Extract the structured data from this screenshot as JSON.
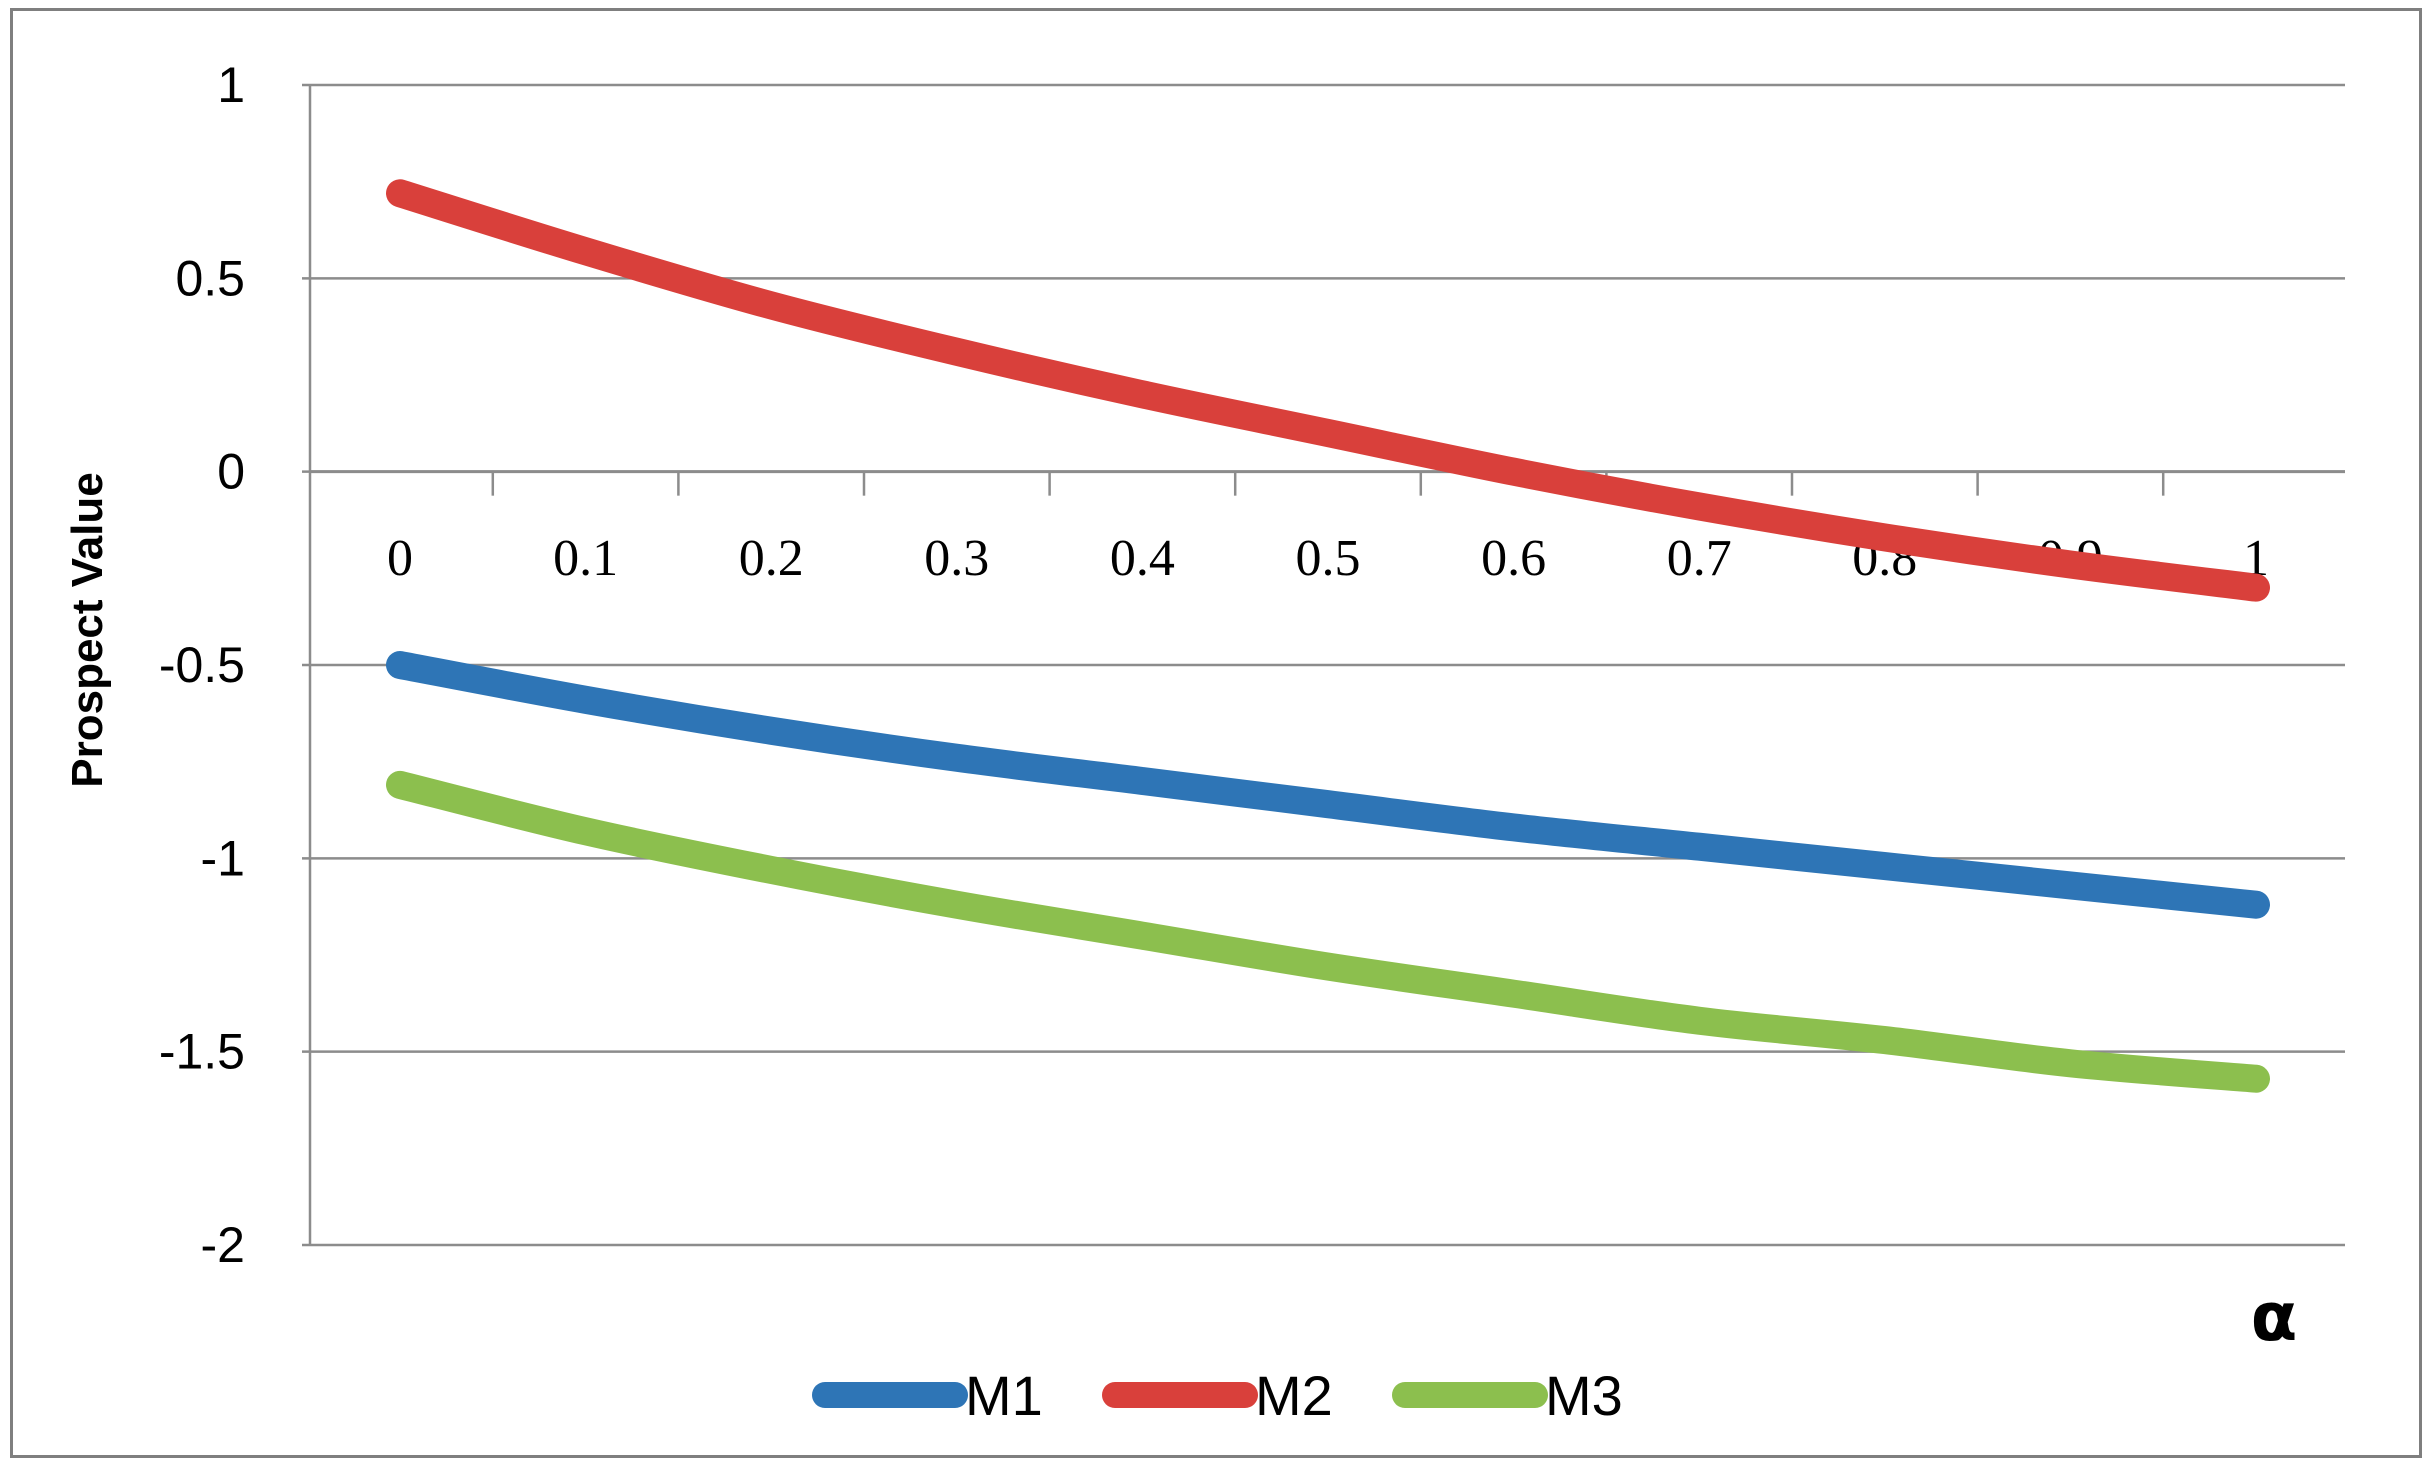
{
  "chart_data": {
    "type": "line",
    "title": "",
    "xlabel": "α",
    "ylabel": "Prospect Value",
    "x": [
      0,
      0.1,
      0.2,
      0.3,
      0.4,
      0.5,
      0.6,
      0.7,
      0.8,
      0.9,
      1
    ],
    "x_tick_labels": [
      "0",
      "0.1",
      "0.2",
      "0.3",
      "0.4",
      "0.5",
      "0.6",
      "0.7",
      "0.8",
      "0.9",
      "1"
    ],
    "y_ticks": [
      1,
      0.5,
      0,
      -0.5,
      -1,
      -1.5,
      -2
    ],
    "y_tick_labels": [
      "1",
      "0.5",
      "0",
      "-0.5",
      "-1",
      "-1.5",
      "-2"
    ],
    "ylim": [
      -2,
      1
    ],
    "grid": true,
    "legend_position": "bottom",
    "series": [
      {
        "name": "M1",
        "color": "#2e75b6",
        "values": [
          -0.5,
          -0.59,
          -0.67,
          -0.74,
          -0.8,
          -0.86,
          -0.92,
          -0.97,
          -1.02,
          -1.07,
          -1.12
        ]
      },
      {
        "name": "M2",
        "color": "#d9403b",
        "values": [
          0.72,
          0.57,
          0.43,
          0.31,
          0.2,
          0.1,
          0.0,
          -0.09,
          -0.17,
          -0.24,
          -0.3
        ]
      },
      {
        "name": "M3",
        "color": "#8cbf4e",
        "values": [
          -0.81,
          -0.93,
          -1.03,
          -1.12,
          -1.2,
          -1.28,
          -1.35,
          -1.42,
          -1.47,
          -1.53,
          -1.57
        ]
      }
    ]
  }
}
